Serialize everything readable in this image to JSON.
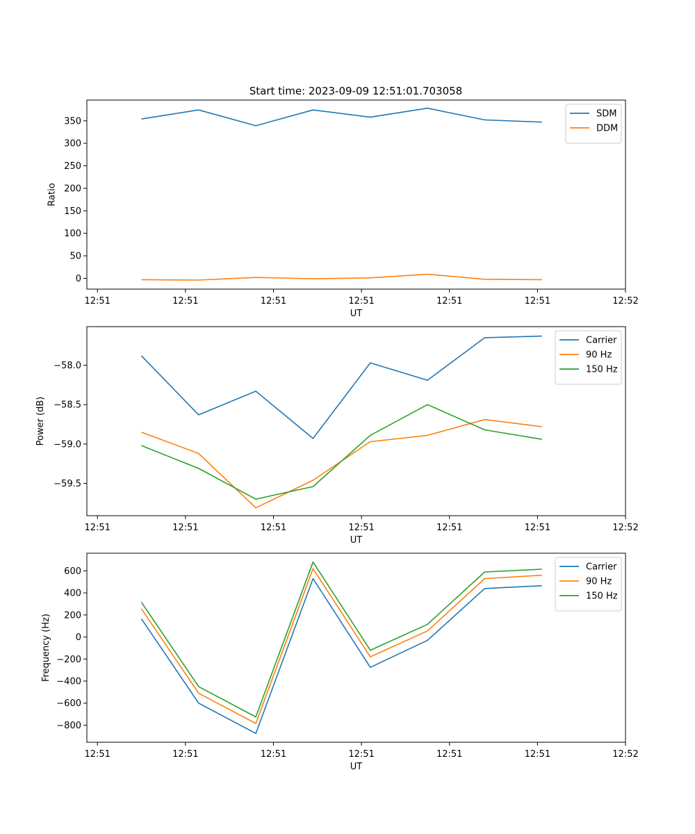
{
  "figure_title": "Start time: 2023-09-09 12:51:01.703058",
  "chart_data": [
    {
      "type": "line",
      "title": "Start time: 2023-09-09 12:51:01.703058",
      "xlabel": "UT",
      "ylabel": "Ratio",
      "x_tick_labels": [
        "12:51",
        "12:51",
        "12:51",
        "12:51",
        "12:51",
        "12:51",
        "12:52"
      ],
      "y_ticks": [
        0,
        50,
        100,
        150,
        200,
        250,
        300,
        350
      ],
      "y_tick_labels": [
        "0",
        "50",
        "100",
        "150",
        "200",
        "250",
        "300",
        "350"
      ],
      "xlim": [
        -0.12,
        6.0
      ],
      "ylim": [
        -24,
        396
      ],
      "x": [
        0.5,
        1.15,
        1.8,
        2.45,
        3.1,
        3.75,
        4.4,
        5.05
      ],
      "series": [
        {
          "name": "SDM",
          "color": "#1f77b4",
          "values": [
            354,
            374,
            339,
            374,
            358,
            378,
            352,
            347
          ]
        },
        {
          "name": "DDM",
          "color": "#ff7f0e",
          "values": [
            -3,
            -4,
            2,
            -1,
            1,
            9,
            -2,
            -3
          ]
        }
      ],
      "legend": "top-right"
    },
    {
      "type": "line",
      "title": "",
      "xlabel": "UT",
      "ylabel": "Power (dB)",
      "x_tick_labels": [
        "12:51",
        "12:51",
        "12:51",
        "12:51",
        "12:51",
        "12:51",
        "12:52"
      ],
      "y_ticks": [
        -59.5,
        -59.0,
        -58.5,
        -58.0
      ],
      "y_tick_labels": [
        "−59.5",
        "−59.0",
        "−58.5",
        "−58.0"
      ],
      "xlim": [
        -0.12,
        6.0
      ],
      "ylim": [
        -59.91,
        -57.51
      ],
      "x": [
        0.5,
        1.15,
        1.8,
        2.45,
        3.1,
        3.75,
        4.4,
        5.05
      ],
      "series": [
        {
          "name": "Carrier",
          "color": "#1f77b4",
          "values": [
            -57.88,
            -58.63,
            -58.33,
            -58.93,
            -57.97,
            -58.19,
            -57.65,
            -57.63
          ]
        },
        {
          "name": "90 Hz",
          "color": "#ff7f0e",
          "values": [
            -58.85,
            -59.12,
            -59.81,
            -59.46,
            -58.97,
            -58.89,
            -58.69,
            -58.78
          ]
        },
        {
          "name": "150 Hz",
          "color": "#2ca02c",
          "values": [
            -59.02,
            -59.31,
            -59.7,
            -59.54,
            -58.89,
            -58.5,
            -58.82,
            -58.94
          ]
        }
      ],
      "legend": "top-right"
    },
    {
      "type": "line",
      "title": "",
      "xlabel": "UT",
      "ylabel": "Frequency (Hz)",
      "x_tick_labels": [
        "12:51",
        "12:51",
        "12:51",
        "12:51",
        "12:51",
        "12:51",
        "12:52"
      ],
      "y_ticks": [
        -800,
        -600,
        -400,
        -200,
        0,
        200,
        400,
        600
      ],
      "y_tick_labels": [
        "−800",
        "−600",
        "−400",
        "−200",
        "0",
        "200",
        "400",
        "600"
      ],
      "xlim": [
        -0.12,
        6.0
      ],
      "ylim": [
        -955,
        760
      ],
      "x": [
        0.5,
        1.15,
        1.8,
        2.45,
        3.1,
        3.75,
        4.4,
        5.05
      ],
      "series": [
        {
          "name": "Carrier",
          "color": "#1f77b4",
          "values": [
            165,
            -600,
            -875,
            530,
            -275,
            -30,
            440,
            465
          ]
        },
        {
          "name": "90 Hz",
          "color": "#ff7f0e",
          "values": [
            255,
            -510,
            -785,
            620,
            -180,
            55,
            530,
            560
          ]
        },
        {
          "name": "150 Hz",
          "color": "#2ca02c",
          "values": [
            315,
            -450,
            -725,
            680,
            -120,
            115,
            590,
            615
          ]
        }
      ],
      "legend": "top-right"
    }
  ]
}
